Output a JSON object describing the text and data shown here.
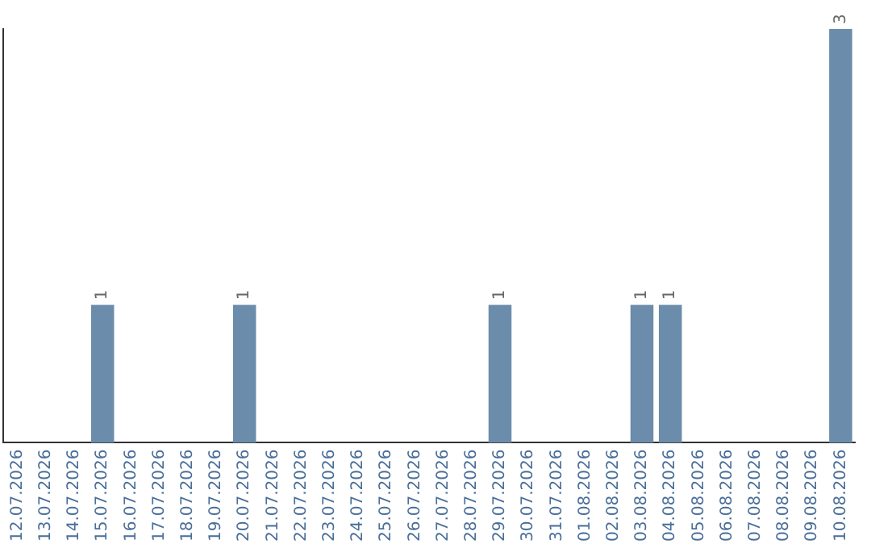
{
  "chart_data": {
    "type": "bar",
    "categories": [
      "12.07.2026",
      "13.07.2026",
      "14.07.2026",
      "15.07.2026",
      "16.07.2026",
      "17.07.2026",
      "18.07.2026",
      "19.07.2026",
      "20.07.2026",
      "21.07.2026",
      "22.07.2026",
      "23.07.2026",
      "24.07.2026",
      "25.07.2026",
      "26.07.2026",
      "27.07.2026",
      "28.07.2026",
      "29.07.2026",
      "30.07.2026",
      "31.07.2026",
      "01.08.2026",
      "02.08.2026",
      "03.08.2026",
      "04.08.2026",
      "05.08.2026",
      "06.08.2026",
      "07.08.2026",
      "08.08.2026",
      "09.08.2026",
      "10.08.2026"
    ],
    "values": [
      0,
      0,
      0,
      1,
      0,
      0,
      0,
      0,
      1,
      0,
      0,
      0,
      0,
      0,
      0,
      0,
      0,
      1,
      0,
      0,
      0,
      0,
      1,
      1,
      0,
      0,
      0,
      0,
      0,
      3
    ],
    "value_labels": [
      null,
      null,
      null,
      "1",
      null,
      null,
      null,
      null,
      "1",
      null,
      null,
      null,
      null,
      null,
      null,
      null,
      null,
      "1",
      null,
      null,
      null,
      null,
      "1",
      "1",
      null,
      null,
      null,
      null,
      null,
      "3"
    ],
    "color": "#6b8cab",
    "tick_labels": "x",
    "grid": false,
    "legend": false
  }
}
